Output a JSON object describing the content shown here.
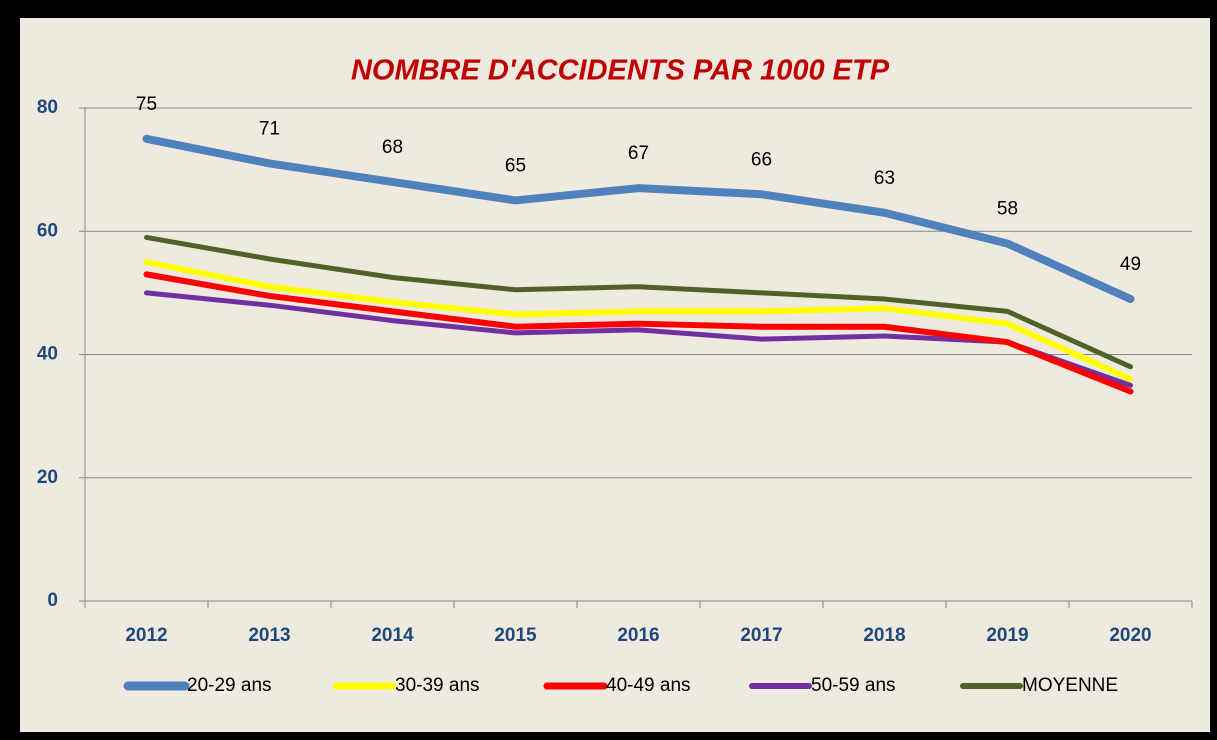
{
  "chart_data": {
    "type": "line",
    "title": "NOMBRE D'ACCIDENTS PAR 1000 ETP",
    "categories": [
      "2012",
      "2013",
      "2014",
      "2015",
      "2016",
      "2017",
      "2018",
      "2019",
      "2020"
    ],
    "series": [
      {
        "name": "20-29 ans",
        "color": "#4F81BD",
        "values": [
          75,
          71,
          68,
          65,
          67,
          66,
          63,
          58,
          49
        ]
      },
      {
        "name": "30-39 ans",
        "color": "#FFFF00",
        "values": [
          55,
          51,
          48.5,
          46.5,
          47,
          47,
          47.5,
          45,
          36
        ]
      },
      {
        "name": "40-49 ans",
        "color": "#FF0000",
        "values": [
          53,
          49.5,
          47,
          44.5,
          45,
          44.5,
          44.5,
          42,
          34
        ]
      },
      {
        "name": "50-59 ans",
        "color": "#7030A0",
        "values": [
          50,
          48,
          45.5,
          43.5,
          44,
          42.5,
          43,
          42,
          35
        ]
      },
      {
        "name": "MOYENNE",
        "color": "#4F6228",
        "values": [
          59,
          55.5,
          52.5,
          50.5,
          51,
          50,
          49,
          47,
          38
        ]
      }
    ],
    "ylim": [
      0,
      80
    ],
    "yticks": [
      0,
      20,
      40,
      60,
      80
    ],
    "grid": true,
    "legend": "bottom"
  }
}
